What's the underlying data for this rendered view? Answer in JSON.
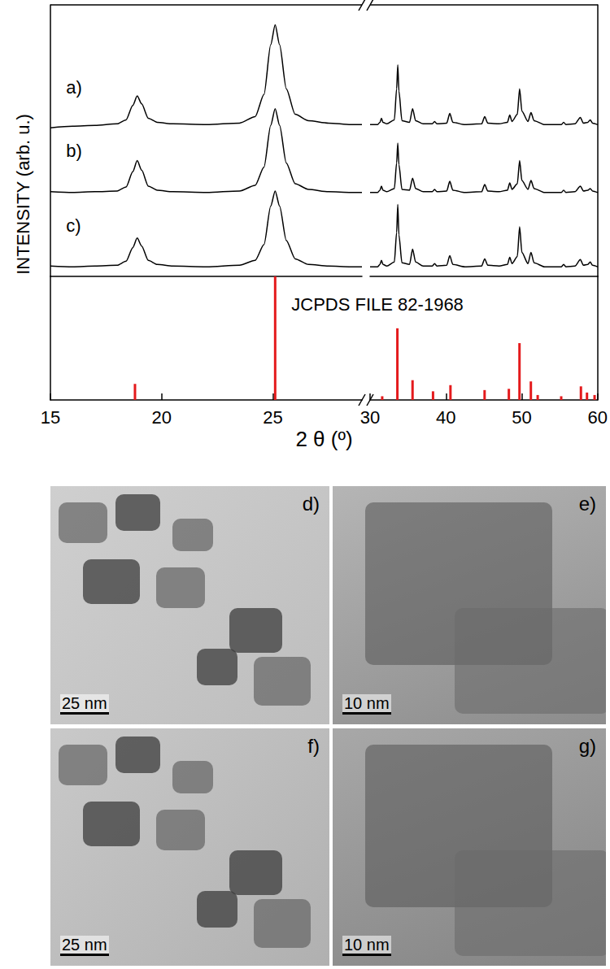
{
  "chart_data": [
    {
      "type": "line",
      "ylabel": "INTENSITY (arb. u.)",
      "xlim": [
        15,
        60
      ],
      "x_break": [
        29,
        30
      ],
      "ylim": [
        0,
        340
      ],
      "tick_labels": false,
      "grid": false,
      "x": [
        15,
        16,
        17,
        18,
        18.4,
        18.7,
        18.9,
        19.1,
        19.4,
        19.8,
        20.5,
        22,
        23.5,
        24.2,
        24.6,
        24.9,
        25.1,
        25.3,
        25.6,
        26,
        26.6,
        27.5,
        28.5,
        29,
        30,
        31,
        31.3,
        31.5,
        31.7,
        32.2,
        33.2,
        33.5,
        33.65,
        33.8,
        34.2,
        35.2,
        35.6,
        36,
        37,
        38.2,
        38.5,
        38.8,
        40.1,
        40.5,
        40.9,
        42.5,
        44.7,
        45.1,
        45.5,
        47,
        48.1,
        48.4,
        48.7,
        49.4,
        49.7,
        50,
        50.8,
        51.2,
        51.6,
        53,
        55.2,
        55.5,
        55.8,
        57,
        57.7,
        58.1,
        58.7,
        59,
        59.3,
        60
      ],
      "series": [
        {
          "name": "a)",
          "color": "#000000",
          "values": [
            186,
            188,
            189,
            191,
            196,
            214,
            226,
            216,
            198,
            193,
            191,
            190,
            192,
            200,
            228,
            290,
            315,
            290,
            235,
            203,
            195,
            192,
            190,
            190,
            190,
            190,
            193,
            198,
            193,
            191,
            196,
            235,
            265,
            232,
            195,
            193,
            210,
            195,
            191,
            191,
            194,
            191,
            192,
            204,
            193,
            190,
            191,
            200,
            192,
            191,
            193,
            202,
            194,
            203,
            235,
            207,
            194,
            205,
            195,
            190,
            190,
            193,
            190,
            191,
            199,
            192,
            193,
            196,
            192,
            190
          ]
        },
        {
          "name": "b)",
          "color": "#000000",
          "values": [
            106,
            105,
            106,
            107,
            112,
            131,
            145,
            133,
            113,
            108,
            106,
            105,
            107,
            114,
            137,
            189,
            210,
            189,
            142,
            116,
            109,
            106,
            105,
            105,
            105,
            105,
            108,
            113,
            108,
            106,
            110,
            142,
            167,
            140,
            109,
            108,
            123,
            110,
            106,
            106,
            109,
            106,
            107,
            119,
            108,
            105,
            106,
            115,
            107,
            106,
            108,
            117,
            109,
            116,
            145,
            120,
            109,
            120,
            110,
            105,
            105,
            108,
            105,
            106,
            113,
            107,
            108,
            110,
            107,
            105
          ]
        },
        {
          "name": "c)",
          "color": "#000000",
          "values": [
            13,
            12,
            13,
            14,
            19,
            36,
            48,
            38,
            20,
            15,
            13,
            12,
            14,
            20,
            40,
            88,
            107,
            88,
            45,
            22,
            15,
            13,
            12,
            12,
            12,
            12,
            15,
            20,
            15,
            13,
            18,
            55,
            90,
            52,
            17,
            15,
            34,
            18,
            13,
            13,
            16,
            13,
            14,
            26,
            15,
            12,
            13,
            22,
            14,
            13,
            15,
            24,
            16,
            25,
            62,
            30,
            16,
            30,
            17,
            12,
            12,
            15,
            12,
            13,
            21,
            14,
            15,
            18,
            14,
            12
          ]
        }
      ]
    },
    {
      "type": "bar",
      "xlabel": "2 θ (º)",
      "annotation": "JCPDS FILE 82-1968",
      "xlim": [
        15,
        60
      ],
      "x_break": [
        29,
        30
      ],
      "ylim": [
        0,
        100
      ],
      "xticks": [
        15,
        20,
        25,
        30,
        40,
        50,
        60
      ],
      "tick_labels": "x",
      "grid": false,
      "x": [
        18.8,
        25.1,
        31.6,
        33.6,
        35.6,
        38.3,
        40.6,
        45.1,
        48.3,
        49.7,
        51.2,
        52.1,
        55.2,
        57.8,
        58.6,
        59.6
      ],
      "values": [
        13,
        100,
        3,
        58,
        16,
        7,
        12,
        8,
        9,
        46,
        15,
        4,
        3,
        11,
        6,
        4
      ],
      "color": "#e41a1c"
    }
  ],
  "images": [
    {
      "label": "d)",
      "scale_bar": "25 nm"
    },
    {
      "label": "e)",
      "scale_bar": "10 nm"
    },
    {
      "label": "f)",
      "scale_bar": "25 nm"
    },
    {
      "label": "g)",
      "scale_bar": "10 nm"
    }
  ]
}
